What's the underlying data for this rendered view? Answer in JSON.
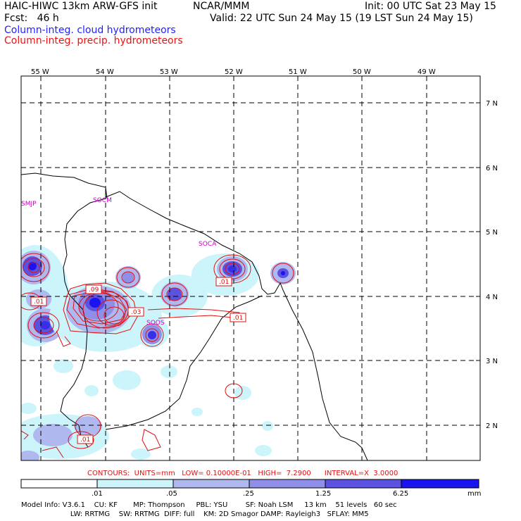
{
  "header": {
    "title_left": "HAIC-HIWC 13km ARW-GFS init",
    "institution": "NCAR/MMM",
    "init": "Init: 00 UTC Sat 23 May 15",
    "fcst": "Fcst:   46 h",
    "valid": "Valid: 22 UTC Sun 24 May 15 (19 LST Sun 24 May 15)",
    "field1": "Column-integ. cloud hydrometeors",
    "field2": "Column-integ. precip. hydrometeors"
  },
  "colors": {
    "cloud_text": "#2222ff",
    "precip_text": "#ee1111",
    "contour": "#e01010",
    "station": "#cc00cc",
    "fill1": "#ccf4fb",
    "fill2": "#b0b8f0",
    "fill3": "#8f8ee8",
    "fill4": "#5b52e2",
    "fill5": "#3a2de6",
    "fill6": "#1a14f0"
  },
  "lon_labels": [
    "55 W",
    "54 W",
    "53 W",
    "52 W",
    "51 W",
    "50 W",
    "49 W"
  ],
  "lat_labels": [
    "7 N",
    "6 N",
    "5 N",
    "4 N",
    "3 N",
    "2 N"
  ],
  "stations": [
    "SMJP",
    "SOCM",
    "SOCA",
    "SOOS"
  ],
  "contour_labels": [
    ".09",
    ".01",
    ".03",
    ".01",
    ".01",
    ".01"
  ],
  "footer": {
    "contours": "CONTOURS:  UNITS=mm   LOW= 0.10000E-01   HIGH=  7.2900      INTERVAL=X  3.0000",
    "scale_labels": [
      ".01",
      ".05",
      ".25",
      "1.25",
      "6.25"
    ],
    "units": "mm",
    "model_line1": "Model Info: V3.6.1    CU: KF       MP: Thompson     PBL: YSU        SF: Noah LSM     13 km    51 levels   60 sec",
    "model_line2": "                      LW: RRTMG    SW: RRTMG  DIFF: full    KM: 2D Smagor DAMP: Rayleigh3   SFLAY: MM5"
  }
}
